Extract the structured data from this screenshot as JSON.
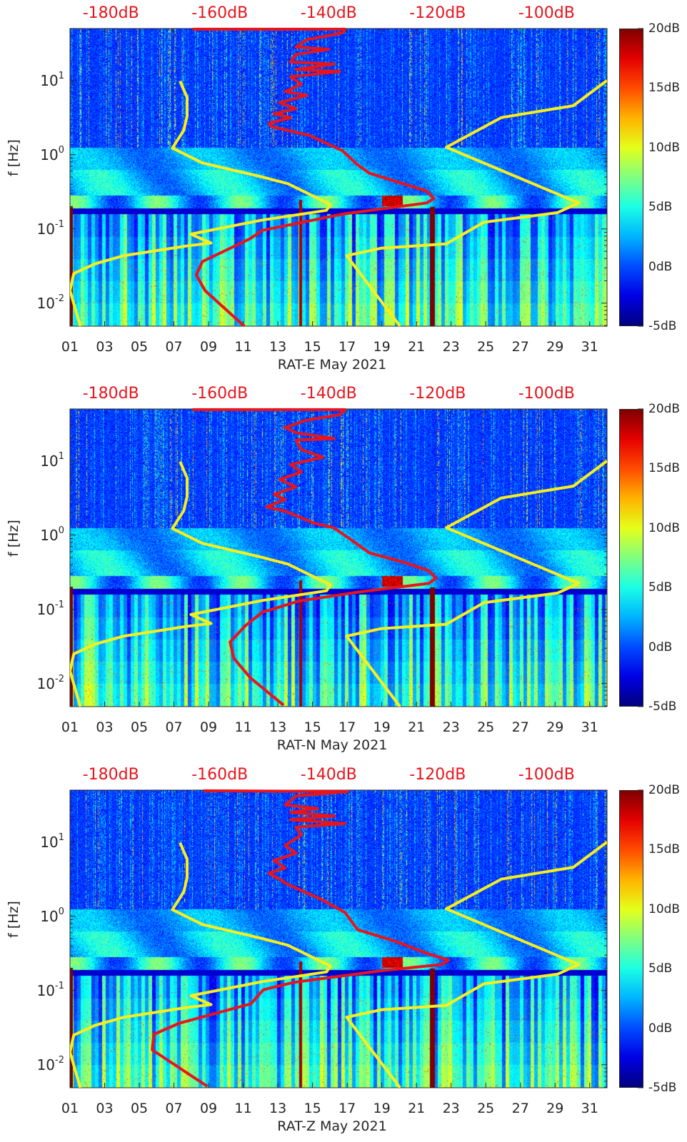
{
  "chart_data": {
    "type": "heatmap",
    "description_axis": {
      "xlabel_suffix": "May 2021",
      "ylabel": "f [Hz]",
      "xlim": [
        1,
        32
      ],
      "ylim": [
        0.0049,
        50
      ],
      "yscale": "log",
      "top_axis_lim_dB": [
        -187.5,
        -88.9
      ],
      "x_tick_labels": [
        "01",
        "03",
        "05",
        "07",
        "09",
        "11",
        "13",
        "15",
        "17",
        "19",
        "21",
        "23",
        "25",
        "27",
        "29",
        "31"
      ],
      "x_tick_days": [
        1,
        3,
        5,
        7,
        9,
        11,
        13,
        15,
        17,
        19,
        21,
        23,
        25,
        27,
        29,
        31
      ],
      "y_ticks": [
        {
          "value": 10,
          "base": "10",
          "exp": "1"
        },
        {
          "value": 1,
          "base": "10",
          "exp": "0"
        },
        {
          "value": 0.1,
          "base": "10",
          "exp": "-1"
        },
        {
          "value": 0.01,
          "base": "10",
          "exp": "-2"
        }
      ],
      "top_tick_labels": [
        "-180dB",
        "-160dB",
        "-140dB",
        "-120dB",
        "-100dB"
      ],
      "top_tick_values": [
        -180,
        -160,
        -140,
        -120,
        -100
      ],
      "colorbar": {
        "range": [
          -5,
          20
        ],
        "tick_labels": [
          "20dB",
          "15dB",
          "10dB",
          "5dB",
          "0dB",
          "-5dB"
        ],
        "tick_values": [
          20,
          15,
          10,
          5,
          0,
          -5
        ],
        "colormap": "jet"
      }
    },
    "noise_models": {
      "low_noise_model_color": "#f7ee1f",
      "high_noise_model_color": "#f7ee1f",
      "nlnm_dB_log10f": [
        [
          -167.3,
          0.99
        ],
        [
          -166.0,
          0.77
        ],
        [
          -166.0,
          0.52
        ],
        [
          -166.6,
          0.33
        ],
        [
          -168.7,
          0.09
        ],
        [
          -163.2,
          -0.11
        ],
        [
          -152.2,
          -0.3
        ],
        [
          -147.5,
          -0.39
        ],
        [
          -139.7,
          -0.67
        ],
        [
          -140.4,
          -0.75
        ],
        [
          -152.2,
          -0.88
        ],
        [
          -165.3,
          -1.07
        ],
        [
          -161.6,
          -1.19
        ],
        [
          -166.2,
          -1.23
        ],
        [
          -177.6,
          -1.36
        ],
        [
          -182.9,
          -1.47
        ],
        [
          -186.8,
          -1.6
        ],
        [
          -187.5,
          -1.83
        ],
        [
          -185.6,
          -2.31
        ]
      ],
      "nhnm_dB_log10f": [
        [
          -88.9,
          1.0
        ],
        [
          -95.1,
          0.66
        ],
        [
          -108.3,
          0.5
        ],
        [
          -118.4,
          0.1
        ],
        [
          -94.1,
          -0.65
        ],
        [
          -98.0,
          -0.78
        ],
        [
          -111.5,
          -0.91
        ],
        [
          -118.4,
          -1.2
        ],
        [
          -130.4,
          -1.26
        ],
        [
          -136.7,
          -1.36
        ],
        [
          -126.9,
          -2.31
        ]
      ]
    },
    "panels": [
      {
        "station": "RAT-E",
        "title": "RAT-E May 2021",
        "median_psd_color": "#e8141c",
        "median_psd_dB_log10f": [
          [
            -165,
            1.69
          ],
          [
            -137,
            1.69
          ],
          [
            -137.5,
            1.64
          ],
          [
            -144,
            1.55
          ],
          [
            -146,
            1.45
          ],
          [
            -140,
            1.42
          ],
          [
            -146,
            1.35
          ],
          [
            -147,
            1.25
          ],
          [
            -139,
            1.22
          ],
          [
            -146,
            1.15
          ],
          [
            -138,
            1.12
          ],
          [
            -147,
            1.05
          ],
          [
            -145,
            0.95
          ],
          [
            -148,
            0.85
          ],
          [
            -144,
            0.8
          ],
          [
            -149,
            0.7
          ],
          [
            -146,
            0.62
          ],
          [
            -150,
            0.55
          ],
          [
            -147,
            0.5
          ],
          [
            -151,
            0.42
          ],
          [
            -150.5,
            0.38
          ],
          [
            -143.5,
            0.26
          ],
          [
            -137.4,
            0.05
          ],
          [
            -134.8,
            -0.13
          ],
          [
            -132.5,
            -0.25
          ],
          [
            -122.0,
            -0.49
          ],
          [
            -120.7,
            -0.59
          ],
          [
            -122.0,
            -0.65
          ],
          [
            -137.4,
            -0.8
          ],
          [
            -152.2,
            -1.02
          ],
          [
            -154.4,
            -1.13
          ],
          [
            -163.2,
            -1.44
          ],
          [
            -164.3,
            -1.62
          ],
          [
            -162.7,
            -1.83
          ],
          [
            -155.5,
            -2.31
          ]
        ],
        "seed": 11
      },
      {
        "station": "RAT-N",
        "title": "RAT-N May 2021",
        "median_psd_color": "#e8141c",
        "median_psd_dB_log10f": [
          [
            -165,
            1.69
          ],
          [
            -137,
            1.69
          ],
          [
            -138,
            1.62
          ],
          [
            -144,
            1.55
          ],
          [
            -148,
            1.45
          ],
          [
            -146,
            1.38
          ],
          [
            -139,
            1.3
          ],
          [
            -146,
            1.28
          ],
          [
            -145,
            1.15
          ],
          [
            -141,
            1.05
          ],
          [
            -147,
            0.95
          ],
          [
            -145,
            0.85
          ],
          [
            -149,
            0.75
          ],
          [
            -146,
            0.65
          ],
          [
            -150,
            0.55
          ],
          [
            -148,
            0.48
          ],
          [
            -151.4,
            0.38
          ],
          [
            -147.9,
            0.32
          ],
          [
            -142.6,
            0.16
          ],
          [
            -139.1,
            0.1
          ],
          [
            -136.5,
            -0.03
          ],
          [
            -132.5,
            -0.24
          ],
          [
            -126.0,
            -0.37
          ],
          [
            -121.6,
            -0.48
          ],
          [
            -120.3,
            -0.58
          ],
          [
            -121.6,
            -0.65
          ],
          [
            -134.8,
            -0.77
          ],
          [
            -145.6,
            -0.89
          ],
          [
            -152.2,
            -1.04
          ],
          [
            -155.3,
            -1.22
          ],
          [
            -158.1,
            -1.44
          ],
          [
            -157.4,
            -1.66
          ],
          [
            -154.4,
            -1.92
          ],
          [
            -148.3,
            -2.29
          ]
        ],
        "seed": 23
      },
      {
        "station": "RAT-Z",
        "title": "RAT-Z May 2021",
        "median_psd_color": "#e8141c",
        "median_psd_dB_log10f": [
          [
            -163,
            1.69
          ],
          [
            -136.5,
            1.68
          ],
          [
            -146,
            1.62
          ],
          [
            -148,
            1.5
          ],
          [
            -142,
            1.45
          ],
          [
            -147,
            1.4
          ],
          [
            -139,
            1.35
          ],
          [
            -147,
            1.3
          ],
          [
            -137,
            1.25
          ],
          [
            -146,
            1.2
          ],
          [
            -145,
            1.1
          ],
          [
            -148,
            0.95
          ],
          [
            -146,
            0.85
          ],
          [
            -150,
            0.75
          ],
          [
            -148,
            0.65
          ],
          [
            -151,
            0.58
          ],
          [
            -149,
            0.5
          ],
          [
            -147.8,
            0.44
          ],
          [
            -141.7,
            0.24
          ],
          [
            -137.0,
            0.05
          ],
          [
            -134.7,
            -0.18
          ],
          [
            -127.6,
            -0.34
          ],
          [
            -122.0,
            -0.5
          ],
          [
            -118.0,
            -0.59
          ],
          [
            -119.2,
            -0.65
          ],
          [
            -130.0,
            -0.73
          ],
          [
            -146.4,
            -0.89
          ],
          [
            -152.0,
            -0.99
          ],
          [
            -154.3,
            -1.18
          ],
          [
            -160.4,
            -1.3
          ],
          [
            -167.4,
            -1.44
          ],
          [
            -172.1,
            -1.59
          ],
          [
            -172.4,
            -1.8
          ],
          [
            -162.3,
            -2.29
          ]
        ],
        "seed": 37
      }
    ]
  }
}
